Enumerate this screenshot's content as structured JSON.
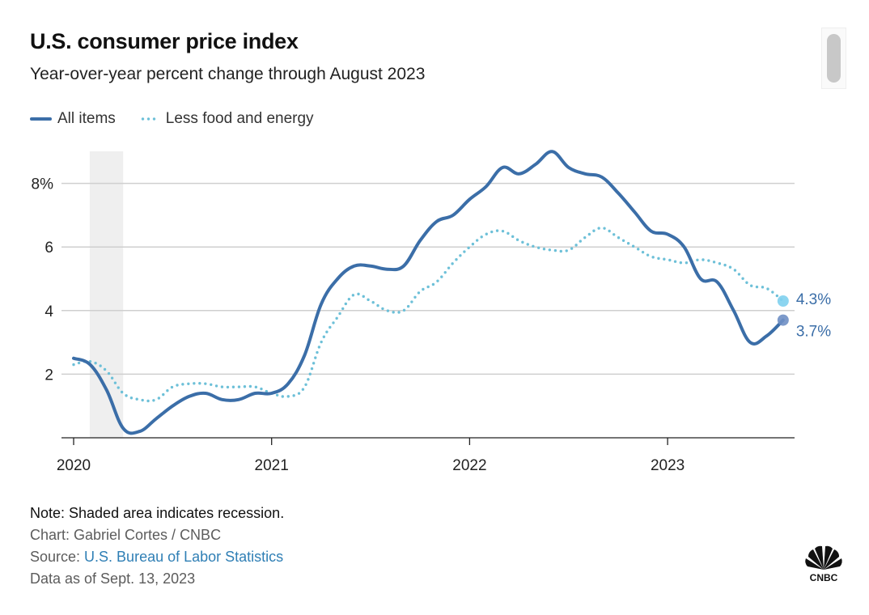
{
  "header": {
    "title": "U.S. consumer price index",
    "subtitle": "Year-over-year percent change through August 2023"
  },
  "legend": [
    {
      "label": "All items",
      "style": "solid",
      "color": "#3b6ea8"
    },
    {
      "label": "Less food and energy",
      "style": "dotted",
      "color": "#6dc0d8"
    }
  ],
  "chart_data": {
    "type": "line",
    "title": "U.S. consumer price index",
    "subtitle": "Year-over-year percent change through August 2023",
    "xlabel": "",
    "ylabel": "",
    "x_start": "2020-01",
    "x_end": "2023-08",
    "x_ticks": [
      "2020",
      "2021",
      "2022",
      "2023"
    ],
    "y_ticks": [
      "2",
      "4",
      "6",
      "8%"
    ],
    "y_tick_values": [
      2,
      4,
      6,
      8
    ],
    "ylim": [
      0,
      9.2
    ],
    "grid": true,
    "legend_position": "top-left",
    "recession_shading": {
      "start": "2020-02",
      "end": "2020-04"
    },
    "series": [
      {
        "name": "All items",
        "style": "solid",
        "color": "#3b6ea8",
        "values": [
          2.5,
          2.3,
          1.5,
          0.3,
          0.2,
          0.6,
          1.0,
          1.3,
          1.4,
          1.2,
          1.2,
          1.4,
          1.4,
          1.7,
          2.6,
          4.2,
          5.0,
          5.4,
          5.4,
          5.3,
          5.4,
          6.2,
          6.8,
          7.0,
          7.5,
          7.9,
          8.5,
          8.3,
          8.6,
          9.0,
          8.5,
          8.3,
          8.2,
          7.7,
          7.1,
          6.5,
          6.4,
          6.0,
          5.0,
          4.9,
          4.0,
          3.0,
          3.2,
          3.7
        ],
        "end_label": "3.7%"
      },
      {
        "name": "Less food and energy",
        "style": "dotted",
        "color": "#6dc0d8",
        "values": [
          2.3,
          2.4,
          2.1,
          1.4,
          1.2,
          1.2,
          1.6,
          1.7,
          1.7,
          1.6,
          1.6,
          1.6,
          1.4,
          1.3,
          1.6,
          3.0,
          3.8,
          4.5,
          4.3,
          4.0,
          4.0,
          4.6,
          4.9,
          5.5,
          6.0,
          6.4,
          6.5,
          6.2,
          6.0,
          5.9,
          5.9,
          6.3,
          6.6,
          6.3,
          6.0,
          5.7,
          5.6,
          5.5,
          5.6,
          5.5,
          5.3,
          4.8,
          4.7,
          4.3
        ],
        "end_label": "4.3%"
      }
    ]
  },
  "footer": {
    "note": "Note: Shaded area indicates recession.",
    "credit": "Chart: Gabriel Cortes / CNBC",
    "source_prefix": "Source: ",
    "source_link": "U.S. Bureau of Labor Statistics",
    "data_as_of": "Data as of Sept. 13, 2023"
  },
  "logo": {
    "name": "CNBC",
    "text": "CNBC"
  },
  "icons": {
    "scrollbar": "scrollbar-thumb",
    "logo": "cnbc-peacock-logo"
  }
}
